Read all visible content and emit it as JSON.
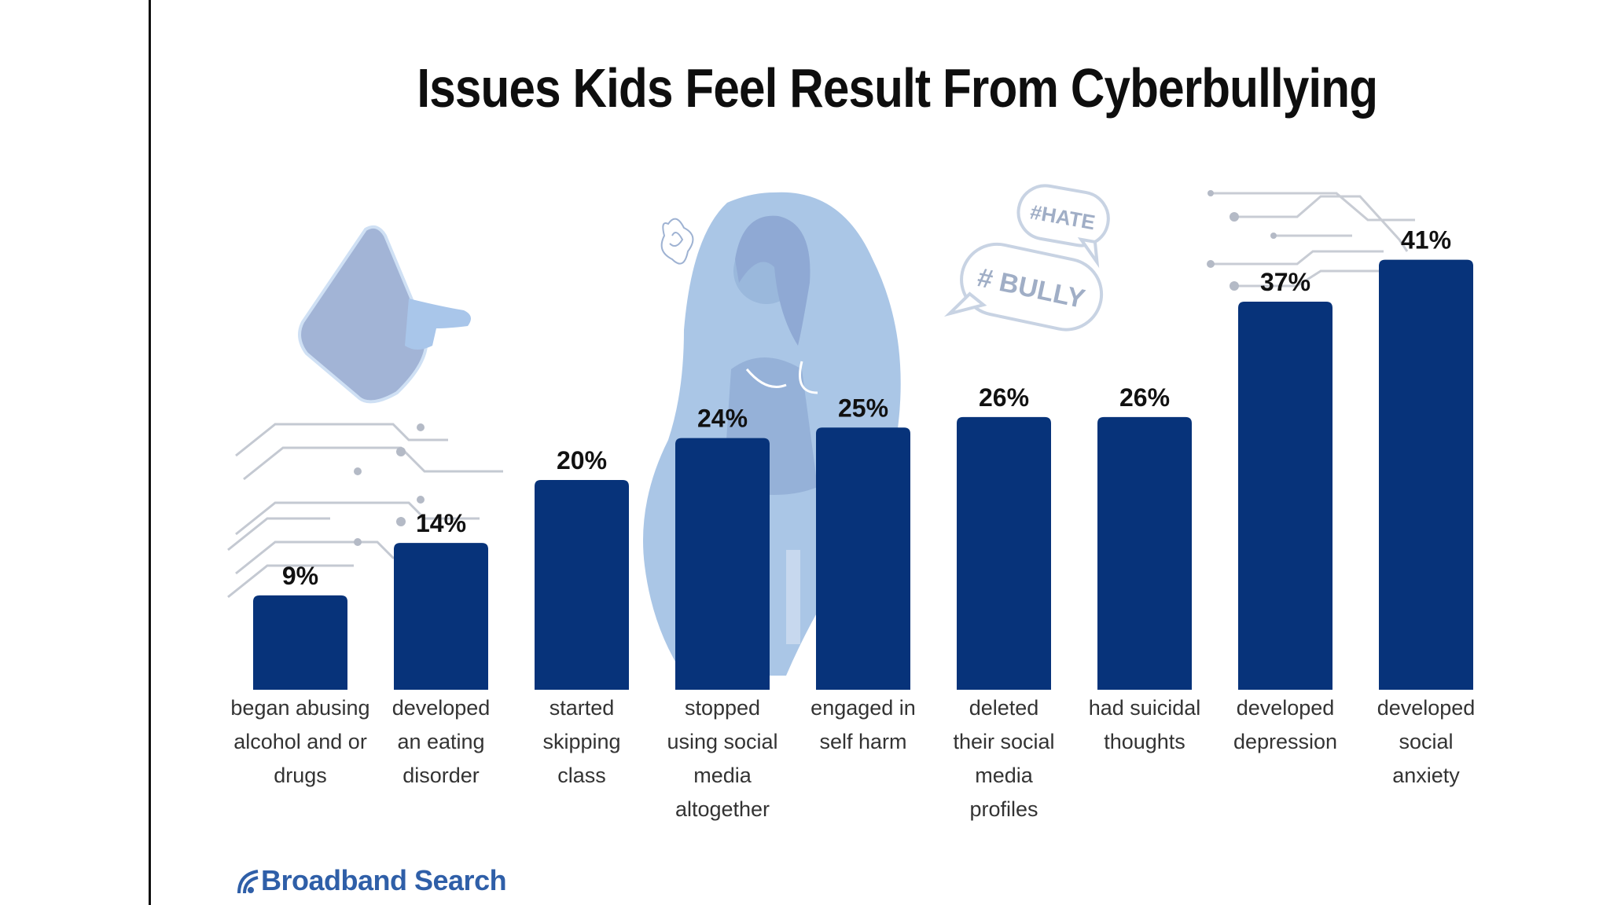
{
  "title": "Issues Kids Feel Result From Cyberbullying",
  "brand": {
    "name": "Broadband Search",
    "icon": "signal-arc-icon"
  },
  "decorations": {
    "bubble_1": "#HATE",
    "bubble_2": "# BULLY"
  },
  "colors": {
    "bar": "#07337a",
    "decor": "#aac6e6",
    "text": "#111111",
    "brand": "#2f5fa8"
  },
  "chart_data": {
    "type": "bar",
    "title": "Issues Kids Feel Result From Cyberbullying",
    "xlabel": "",
    "ylabel": "",
    "ylim": [
      0,
      45
    ],
    "grid": false,
    "categories": [
      "began abusing alcohol and or drugs",
      "developed an eating disorder",
      "started skipping class",
      "stopped using social media altogether",
      "engaged in self harm",
      "deleted their social media profiles",
      "had suicidal thoughts",
      "developed depression",
      "developed social anxiety"
    ],
    "category_lines": [
      [
        "began abusing",
        "alcohol and or",
        "drugs"
      ],
      [
        "developed",
        "an eating",
        "disorder"
      ],
      [
        "started",
        "skipping",
        "class"
      ],
      [
        "stopped",
        "using social",
        "media",
        "altogether"
      ],
      [
        "engaged in",
        "self harm"
      ],
      [
        "deleted",
        "their social",
        "media",
        "profiles"
      ],
      [
        "had suicidal",
        "thoughts"
      ],
      [
        "developed",
        "depression"
      ],
      [
        "developed",
        "social",
        "anxiety"
      ]
    ],
    "values": [
      9,
      14,
      20,
      24,
      25,
      26,
      26,
      37,
      41
    ],
    "value_labels": [
      "9%",
      "14%",
      "20%",
      "24%",
      "25%",
      "26%",
      "26%",
      "37%",
      "41%"
    ]
  }
}
